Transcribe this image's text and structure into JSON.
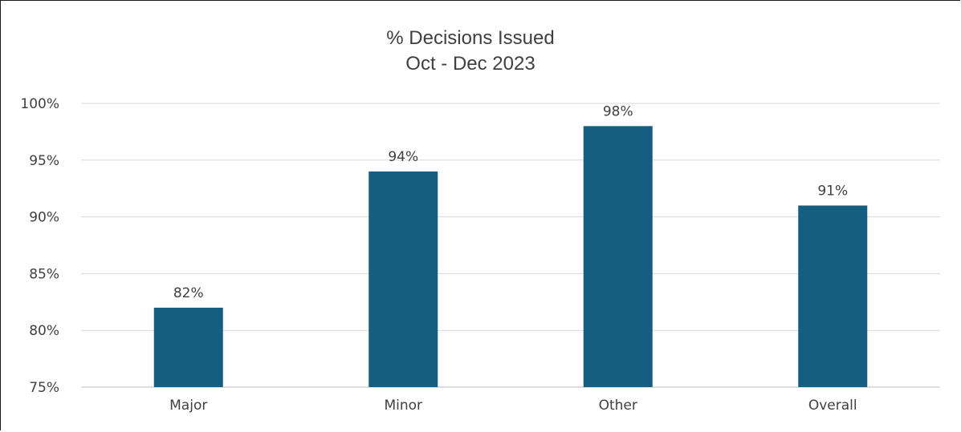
{
  "chart_data": {
    "type": "bar",
    "title_lines": [
      "% Decisions Issued",
      "Oct - Dec 2023"
    ],
    "categories": [
      "Major",
      "Minor",
      "Other",
      "Overall"
    ],
    "values": [
      82,
      94,
      98,
      91
    ],
    "data_labels": [
      "82%",
      "94%",
      "98%",
      "91%"
    ],
    "ylim": [
      75,
      100
    ],
    "yticks": [
      75,
      80,
      85,
      90,
      95,
      100
    ],
    "ytick_labels": [
      "75%",
      "80%",
      "85%",
      "90%",
      "95%",
      "100%"
    ],
    "grid": true,
    "legend": "none",
    "bar_color": "#155e82",
    "grid_color": "#d9d9d9"
  }
}
